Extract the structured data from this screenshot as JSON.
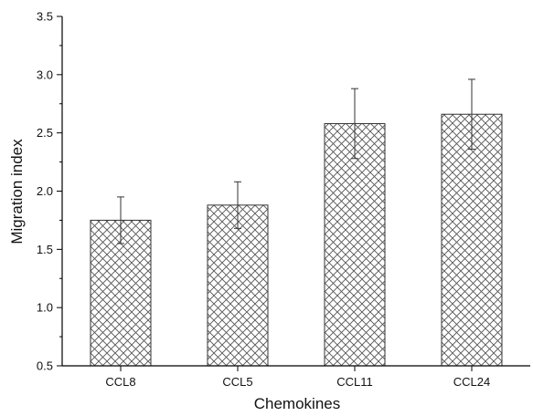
{
  "chart_data": {
    "type": "bar",
    "title": "",
    "xlabel": "Chemokines",
    "ylabel": "Migration index",
    "categories": [
      "CCL8",
      "CCL5",
      "CCL11",
      "CCL24"
    ],
    "values": [
      1.75,
      1.88,
      2.58,
      2.66
    ],
    "error": [
      0.2,
      0.2,
      0.3,
      0.3
    ],
    "ylim": [
      0.5,
      3.5
    ],
    "yticks": [
      "0.5",
      "1.0",
      "1.5",
      "2.0",
      "2.5",
      "3.0",
      "3.5"
    ],
    "grid": false,
    "bar_fill": "crosshatch",
    "colors": {
      "axis": "#000000",
      "bar_edge": "#333333",
      "hatch": "#555555",
      "bar_fill": "#ffffff"
    }
  }
}
